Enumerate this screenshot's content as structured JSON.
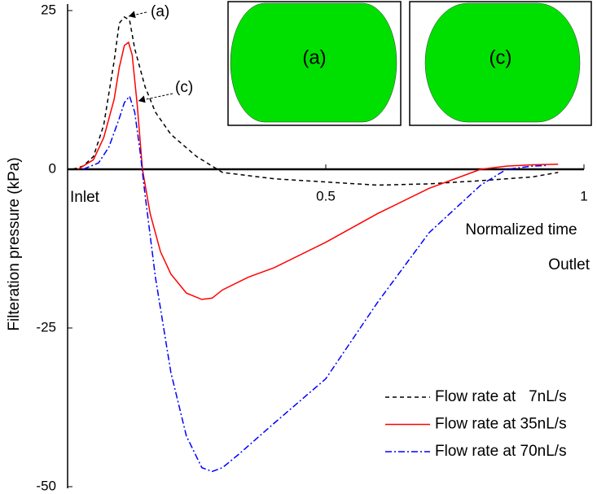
{
  "chart_data": {
    "type": "line",
    "y_label": "Filteration pressure (kPa)",
    "x_label": "Normalized time",
    "x_start_label": "Inlet",
    "x_end_label": "Outlet",
    "xlim": [
      0,
      1
    ],
    "xticks": [
      0.5,
      1
    ],
    "ylim": [
      -50,
      25
    ],
    "yticks": [
      25,
      0,
      -25,
      -50
    ],
    "grid": false,
    "legend": "lower right",
    "annotations": [
      {
        "text": "(a)"
      },
      {
        "text": "(c)"
      }
    ],
    "insets": [
      {
        "label": "(a)",
        "color": "#00e000"
      },
      {
        "label": "(c)",
        "color": "#00e000"
      }
    ],
    "series": [
      {
        "name": "Flow rate at   7nL/s",
        "color": "#000000",
        "dash": "5,4",
        "x": [
          0.01,
          0.03,
          0.05,
          0.07,
          0.09,
          0.1,
          0.11,
          0.12,
          0.13,
          0.15,
          0.17,
          0.2,
          0.25,
          0.3,
          0.4,
          0.5,
          0.6,
          0.7,
          0.8,
          0.9,
          0.95
        ],
        "values": [
          0,
          0.5,
          2,
          7,
          17,
          23,
          24,
          23.5,
          19,
          13,
          9,
          5.5,
          2,
          -0.5,
          -1.5,
          -2,
          -2.5,
          -2.3,
          -1.8,
          -1.2,
          -0.5
        ]
      },
      {
        "name": "Flow rate at 35nL/s",
        "color": "#ff0000",
        "dash": "none",
        "x": [
          0.02,
          0.05,
          0.07,
          0.09,
          0.1,
          0.11,
          0.118,
          0.125,
          0.135,
          0.145,
          0.16,
          0.18,
          0.2,
          0.23,
          0.26,
          0.28,
          0.3,
          0.35,
          0.4,
          0.5,
          0.6,
          0.7,
          0.8,
          0.85,
          0.9,
          0.95
        ],
        "values": [
          0,
          1.5,
          5,
          11,
          16,
          19.5,
          20,
          18,
          10,
          0,
          -7,
          -13,
          -16.5,
          -19.5,
          -20.5,
          -20.3,
          -19,
          -17,
          -15.5,
          -11.5,
          -7,
          -3,
          0,
          0.5,
          0.7,
          0.8
        ]
      },
      {
        "name": "Flow rate at 70nL/s",
        "color": "#0000ff",
        "dash": "8,3,2,3",
        "x": [
          0.03,
          0.06,
          0.08,
          0.1,
          0.11,
          0.12,
          0.13,
          0.14,
          0.15,
          0.17,
          0.2,
          0.23,
          0.26,
          0.28,
          0.3,
          0.33,
          0.4,
          0.5,
          0.6,
          0.7,
          0.8,
          0.85,
          0.9,
          0.93
        ],
        "values": [
          0,
          1,
          3.5,
          8,
          10.5,
          11.5,
          9,
          3,
          -4,
          -17,
          -32,
          -42,
          -47,
          -47.6,
          -47,
          -45,
          -40,
          -33,
          -21,
          -10,
          -2.5,
          0,
          0.5,
          0.6
        ]
      }
    ]
  }
}
